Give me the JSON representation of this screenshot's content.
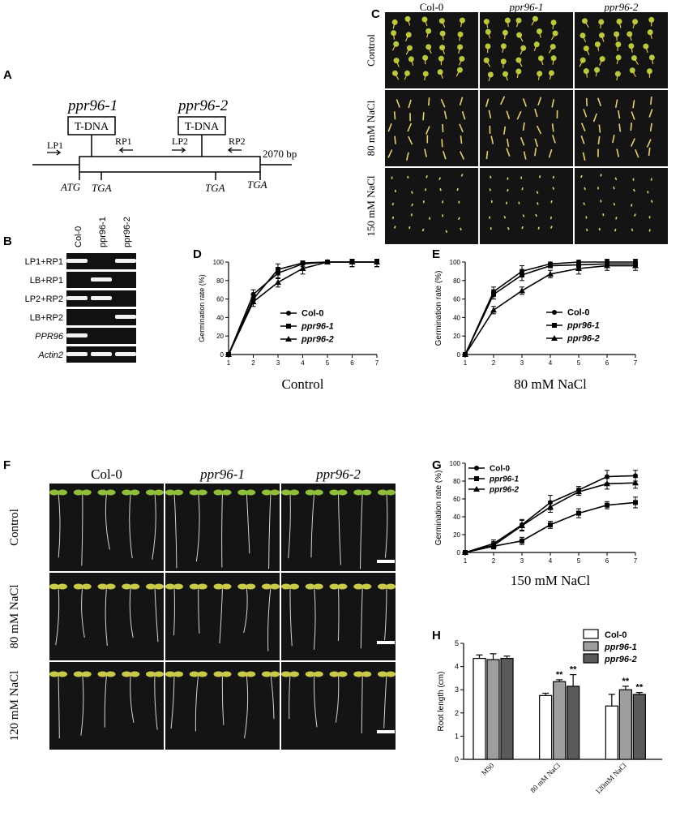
{
  "panels": {
    "A": "A",
    "B": "B",
    "C": "C",
    "D": "D",
    "E": "E",
    "F": "F",
    "G": "G",
    "H": "H"
  },
  "gene_diagram": {
    "allele1": "ppr96-1",
    "allele2": "ppr96-2",
    "tdna": "T-DNA",
    "lp1": "LP1",
    "rp1": "RP1",
    "lp2": "LP2",
    "rp2": "RP2",
    "length": "2070 bp",
    "atg": "ATG",
    "tga": "TGA"
  },
  "gel": {
    "lanes": [
      "Col-0",
      "ppr96-1",
      "ppr96-2"
    ],
    "rows": [
      "LP1+RP1",
      "LB+RP1",
      "LP2+RP2",
      "LB+RP2",
      "PPR96",
      "Actin2"
    ],
    "bands": [
      [
        1,
        0,
        1
      ],
      [
        0,
        1,
        0
      ],
      [
        1,
        1,
        0
      ],
      [
        0,
        0,
        1
      ],
      [
        1,
        0,
        0
      ],
      [
        1,
        1,
        1
      ]
    ]
  },
  "photo_c": {
    "columns": [
      "Col-0",
      "ppr96-1",
      "ppr96-2"
    ],
    "rows": [
      "Control",
      "80 mM NaCl",
      "150 mM NaCl"
    ]
  },
  "photo_f": {
    "columns": [
      "Col-0",
      "ppr96-1",
      "ppr96-2"
    ],
    "rows": [
      "Control",
      "80 mM NaCl",
      "120 mM NaCl"
    ]
  },
  "colors": {
    "bg": "#ffffff",
    "ink": "#000000",
    "photo": "#141414",
    "seedling": "#b5c93a",
    "root": "#d9d4c4",
    "bar_col0": "#ffffff",
    "bar_ppr1": "#9e9e9e",
    "bar_ppr2": "#5a5a5a"
  },
  "chart_data": [
    {
      "id": "D",
      "type": "line",
      "caption": "Control",
      "ylabel": "Germination rate (%)",
      "x": [
        1,
        2,
        3,
        4,
        5,
        6,
        7
      ],
      "ylim": [
        0,
        100
      ],
      "yticks": [
        0,
        20,
        40,
        60,
        80,
        100
      ],
      "legend": "right",
      "series": [
        {
          "name": "Col-0",
          "marker": "circle",
          "values": [
            0,
            65,
            88,
            98,
            100,
            100,
            100
          ],
          "err": [
            0,
            5,
            6,
            3,
            2,
            5,
            5
          ]
        },
        {
          "name": "ppr96-1",
          "marker": "square",
          "values": [
            0,
            60,
            92,
            99,
            100,
            100,
            100
          ],
          "err": [
            0,
            5,
            6,
            2,
            2,
            5,
            5
          ]
        },
        {
          "name": "ppr96-2",
          "marker": "triangle",
          "values": [
            0,
            57,
            78,
            93,
            100,
            100,
            100
          ],
          "err": [
            0,
            5,
            5,
            6,
            2,
            5,
            5
          ]
        }
      ]
    },
    {
      "id": "E",
      "type": "line",
      "caption": "80 mM NaCl",
      "ylabel": "Germination rate (%)",
      "x": [
        1,
        2,
        3,
        4,
        5,
        6,
        7
      ],
      "ylim": [
        0,
        100
      ],
      "yticks": [
        0,
        20,
        40,
        60,
        80,
        100
      ],
      "legend": "right",
      "series": [
        {
          "name": "Col-0",
          "marker": "circle",
          "values": [
            0,
            68,
            90,
            98,
            100,
            100,
            100
          ],
          "err": [
            0,
            5,
            6,
            2,
            2,
            4,
            4
          ]
        },
        {
          "name": "ppr96-1",
          "marker": "square",
          "values": [
            0,
            65,
            86,
            96,
            97,
            98,
            98
          ],
          "err": [
            0,
            5,
            6,
            2,
            3,
            4,
            4
          ]
        },
        {
          "name": "ppr96-2",
          "marker": "triangle",
          "values": [
            0,
            48,
            69,
            87,
            93,
            96,
            96
          ],
          "err": [
            0,
            4,
            4,
            4,
            6,
            5,
            5
          ]
        }
      ]
    },
    {
      "id": "G",
      "type": "line",
      "caption": "150 mM NaCl",
      "ylabel": "Germination rate (%)",
      "x": [
        1,
        2,
        3,
        4,
        5,
        6,
        7
      ],
      "ylim": [
        0,
        100
      ],
      "yticks": [
        0,
        20,
        40,
        60,
        80,
        100
      ],
      "legend": "top-left",
      "series": [
        {
          "name": "Col-0",
          "marker": "circle",
          "values": [
            0,
            10,
            31,
            56,
            70,
            85,
            86
          ],
          "err": [
            0,
            4,
            6,
            8,
            4,
            7,
            6
          ]
        },
        {
          "name": "ppr96-1",
          "marker": "square",
          "values": [
            0,
            7,
            13,
            31,
            44,
            53,
            56
          ],
          "err": [
            0,
            3,
            4,
            4,
            5,
            4,
            6
          ]
        },
        {
          "name": "ppr96-2",
          "marker": "triangle",
          "values": [
            0,
            8,
            30,
            51,
            68,
            77,
            78
          ],
          "err": [
            0,
            4,
            6,
            6,
            4,
            6,
            6
          ]
        }
      ]
    },
    {
      "id": "H",
      "type": "bar",
      "ylabel": "Root length (cm)",
      "categories": [
        "MS0",
        "80 mM NaCl",
        "120mM NaCl"
      ],
      "ylim": [
        0,
        5
      ],
      "yticks": [
        0,
        1,
        2,
        3,
        4,
        5
      ],
      "legend": "top-right",
      "series": [
        {
          "name": "Col-0",
          "values": [
            4.35,
            2.75,
            2.3
          ],
          "err": [
            0.15,
            0.1,
            0.5
          ],
          "sig": [
            "",
            "",
            ""
          ]
        },
        {
          "name": "ppr96-1",
          "values": [
            4.3,
            3.35,
            3.0
          ],
          "err": [
            0.25,
            0.08,
            0.15
          ],
          "sig": [
            "",
            "**",
            "**"
          ]
        },
        {
          "name": "ppr96-2",
          "values": [
            4.35,
            3.15,
            2.8
          ],
          "err": [
            0.1,
            0.5,
            0.08
          ],
          "sig": [
            "",
            "**",
            "**"
          ]
        }
      ]
    }
  ]
}
